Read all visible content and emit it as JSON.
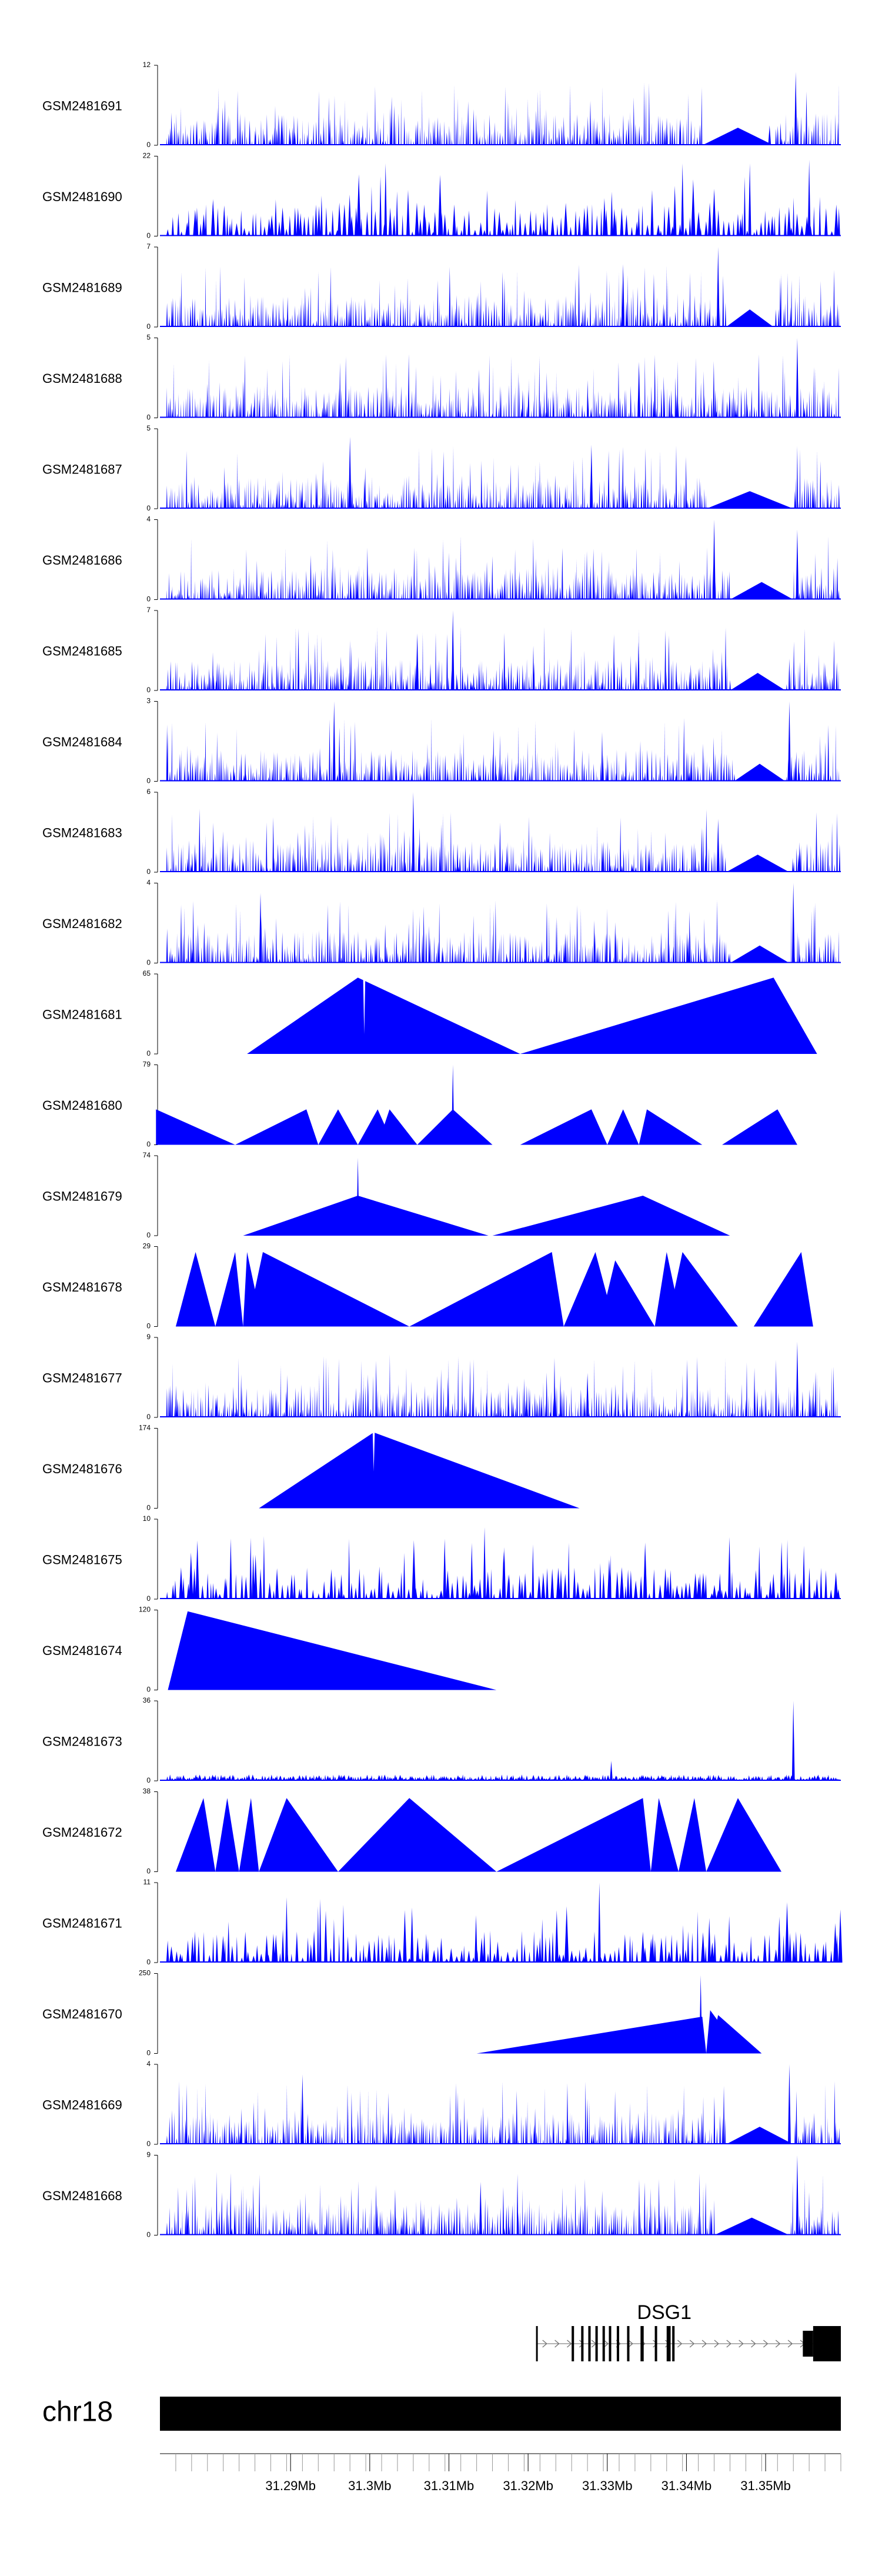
{
  "chart_data": {
    "type": "area",
    "chromosome": "chr18",
    "x_range_mb": [
      31.2735,
      31.3595
    ],
    "x_ticks": [
      31.29,
      31.3,
      31.31,
      31.32,
      31.33,
      31.34,
      31.35
    ],
    "x_tick_labels": [
      "31.29Mb",
      "31.3Mb",
      "31.31Mb",
      "31.32Mb",
      "31.33Mb",
      "31.34Mb",
      "31.35Mb"
    ],
    "colors": {
      "signal": "#0000ff",
      "axis": "#000000",
      "ideogram": "#000000",
      "gene": "#000000"
    },
    "tracks": [
      {
        "name": "GSM2481691",
        "ymax": 12,
        "pattern": "dense",
        "seed": 11,
        "spikes": [
          {
            "x": 31.3538,
            "y": 11
          },
          {
            "x": 31.3505,
            "y": 3
          },
          {
            "x": 31.2889,
            "y": 4.5
          }
        ],
        "gaps": [
          [
            31.342,
            31.351
          ]
        ]
      },
      {
        "name": "GSM2481690",
        "ymax": 22,
        "pattern": "sparse",
        "seed": 12,
        "spikes": [
          {
            "x": 31.3555,
            "y": 21
          },
          {
            "x": 31.302,
            "y": 20
          },
          {
            "x": 31.3395,
            "y": 20
          },
          {
            "x": 31.348,
            "y": 20
          }
        ],
        "gaps": []
      },
      {
        "name": "GSM2481689",
        "ymax": 7,
        "pattern": "dense",
        "seed": 13,
        "spikes": [
          {
            "x": 31.344,
            "y": 7
          },
          {
            "x": 31.332,
            "y": 5.5
          }
        ],
        "gaps": [
          [
            31.345,
            31.351
          ]
        ]
      },
      {
        "name": "GSM2481688",
        "ymax": 5,
        "pattern": "dense",
        "seed": 14,
        "spikes": [
          {
            "x": 31.354,
            "y": 5
          },
          {
            "x": 31.334,
            "y": 3.5
          }
        ],
        "gaps": []
      },
      {
        "name": "GSM2481687",
        "ymax": 5,
        "pattern": "dense",
        "seed": 15,
        "spikes": [
          {
            "x": 31.2975,
            "y": 4.5
          },
          {
            "x": 31.328,
            "y": 4
          }
        ],
        "gaps": [
          [
            31.3425,
            31.3535
          ]
        ]
      },
      {
        "name": "GSM2481686",
        "ymax": 4,
        "pattern": "dense",
        "seed": 16,
        "spikes": [
          {
            "x": 31.3435,
            "y": 4
          },
          {
            "x": 31.354,
            "y": 3.5
          }
        ],
        "gaps": [
          [
            31.3455,
            31.3535
          ]
        ]
      },
      {
        "name": "GSM2481685",
        "ymax": 7,
        "pattern": "dense",
        "seed": 17,
        "spikes": [
          {
            "x": 31.3105,
            "y": 7
          },
          {
            "x": 31.306,
            "y": 5
          }
        ],
        "gaps": [
          [
            31.3455,
            31.3525
          ]
        ]
      },
      {
        "name": "GSM2481684",
        "ymax": 3,
        "pattern": "dense",
        "seed": 18,
        "spikes": [
          {
            "x": 31.2955,
            "y": 3
          },
          {
            "x": 31.353,
            "y": 3
          }
        ],
        "gaps": [
          [
            31.346,
            31.3525
          ]
        ]
      },
      {
        "name": "GSM2481683",
        "ymax": 6,
        "pattern": "dense",
        "seed": 19,
        "spikes": [
          {
            "x": 31.3055,
            "y": 6
          },
          {
            "x": 31.344,
            "y": 4
          }
        ],
        "gaps": [
          [
            31.345,
            31.353
          ]
        ]
      },
      {
        "name": "GSM2481682",
        "ymax": 4,
        "pattern": "dense",
        "seed": 20,
        "spikes": [
          {
            "x": 31.3535,
            "y": 4
          },
          {
            "x": 31.2862,
            "y": 3.5
          }
        ],
        "gaps": [
          [
            31.3455,
            31.353
          ]
        ]
      },
      {
        "name": "GSM2481681",
        "ymax": 65,
        "pattern": "triangles",
        "seed": 21,
        "triangles": [
          [
            31.2845,
            31.319,
            31.2985,
            62
          ],
          [
            31.319,
            31.3565,
            31.351,
            62
          ]
        ],
        "notches": [
          {
            "x": 31.2993,
            "y": 16
          }
        ],
        "spikes": [],
        "gaps": []
      },
      {
        "name": "GSM2481680",
        "ymax": 79,
        "pattern": "triangles",
        "seed": 22,
        "triangles": [
          [
            31.273,
            31.283,
            31.273,
            35
          ],
          [
            31.283,
            31.2935,
            31.292,
            35
          ],
          [
            31.2935,
            31.2985,
            31.296,
            35
          ],
          [
            31.2985,
            31.303,
            31.301,
            35
          ],
          [
            31.301,
            31.306,
            31.3025,
            35
          ],
          [
            31.306,
            31.3155,
            31.3105,
            35
          ],
          [
            31.319,
            31.33,
            31.328,
            35
          ],
          [
            31.33,
            31.334,
            31.332,
            35
          ],
          [
            31.334,
            31.342,
            31.335,
            35
          ],
          [
            31.3445,
            31.354,
            31.3515,
            35
          ]
        ],
        "notches": [],
        "spikes": [
          {
            "x": 31.3105,
            "y": 79
          }
        ],
        "gaps": []
      },
      {
        "name": "GSM2481679",
        "ymax": 74,
        "pattern": "triangles",
        "seed": 23,
        "triangles": [
          [
            31.284,
            31.315,
            31.2985,
            37
          ],
          [
            31.3155,
            31.3455,
            31.3345,
            37
          ]
        ],
        "notches": [
          {
            "x": 31.2985,
            "y": 8
          }
        ],
        "spikes": [
          {
            "x": 31.2985,
            "y": 72
          }
        ],
        "gaps": []
      },
      {
        "name": "GSM2481678",
        "ymax": 29,
        "pattern": "triangles",
        "seed": 24,
        "triangles": [
          [
            31.2755,
            31.2805,
            31.278,
            27
          ],
          [
            31.2805,
            31.284,
            31.283,
            27
          ],
          [
            31.284,
            31.2865,
            31.2845,
            27
          ],
          [
            31.2845,
            31.305,
            31.2865,
            27
          ],
          [
            31.305,
            31.3245,
            31.323,
            27
          ],
          [
            31.3245,
            31.331,
            31.3285,
            27
          ],
          [
            31.329,
            31.336,
            31.331,
            24
          ],
          [
            31.336,
            31.3395,
            31.3375,
            27
          ],
          [
            31.3375,
            31.3465,
            31.3395,
            27
          ],
          [
            31.3485,
            31.356,
            31.3545,
            27
          ]
        ],
        "notches": [],
        "spikes": [],
        "gaps": []
      },
      {
        "name": "GSM2481677",
        "ymax": 9,
        "pattern": "dense",
        "seed": 25,
        "spikes": [
          {
            "x": 31.354,
            "y": 8.5
          },
          {
            "x": 31.3275,
            "y": 5
          }
        ],
        "gaps": []
      },
      {
        "name": "GSM2481676",
        "ymax": 174,
        "pattern": "triangles",
        "seed": 26,
        "triangles": [
          [
            31.286,
            31.3265,
            31.3005,
            165
          ]
        ],
        "notches": [
          {
            "x": 31.3005,
            "y": 80
          }
        ],
        "spikes": [],
        "gaps": []
      },
      {
        "name": "GSM2481675",
        "ymax": 10,
        "pattern": "sparse",
        "seed": 27,
        "spikes": [
          {
            "x": 31.3145,
            "y": 9
          },
          {
            "x": 31.317,
            "y": 6.5
          }
        ],
        "gaps": []
      },
      {
        "name": "GSM2481674",
        "ymax": 120,
        "pattern": "triangles",
        "seed": 28,
        "triangles": [
          [
            31.2745,
            31.316,
            31.277,
            118
          ]
        ],
        "notches": [],
        "spikes": [],
        "gaps": []
      },
      {
        "name": "GSM2481673",
        "ymax": 36,
        "pattern": "low",
        "seed": 29,
        "spikes": [
          {
            "x": 31.3535,
            "y": 36
          },
          {
            "x": 31.3305,
            "y": 9
          }
        ],
        "gaps": []
      },
      {
        "name": "GSM2481672",
        "ymax": 38,
        "pattern": "triangles",
        "seed": 30,
        "triangles": [
          [
            31.2755,
            31.2805,
            31.279,
            35
          ],
          [
            31.2805,
            31.2835,
            31.282,
            35
          ],
          [
            31.2835,
            31.286,
            31.285,
            35
          ],
          [
            31.286,
            31.296,
            31.2895,
            35
          ],
          [
            31.296,
            31.316,
            31.305,
            35
          ],
          [
            31.316,
            31.3355,
            31.3345,
            35
          ],
          [
            31.3355,
            31.339,
            31.3365,
            35
          ],
          [
            31.339,
            31.3425,
            31.341,
            35
          ],
          [
            31.3425,
            31.352,
            31.3465,
            35
          ]
        ],
        "notches": [],
        "spikes": [],
        "gaps": []
      },
      {
        "name": "GSM2481671",
        "ymax": 11,
        "pattern": "sparse",
        "seed": 31,
        "spikes": [
          {
            "x": 31.329,
            "y": 11
          },
          {
            "x": 31.2895,
            "y": 9
          }
        ],
        "gaps": []
      },
      {
        "name": "GSM2481670",
        "ymax": 250,
        "pattern": "triangles",
        "seed": 32,
        "triangles": [
          [
            31.3135,
            31.3425,
            31.342,
            115
          ],
          [
            31.3425,
            31.347,
            31.343,
            135
          ],
          [
            31.343,
            31.3495,
            31.344,
            120
          ]
        ],
        "notches": [],
        "spikes": [
          {
            "x": 31.3418,
            "y": 245
          }
        ],
        "gaps": []
      },
      {
        "name": "GSM2481669",
        "ymax": 4,
        "pattern": "dense",
        "seed": 33,
        "spikes": [
          {
            "x": 31.353,
            "y": 4
          },
          {
            "x": 31.2915,
            "y": 3.5
          }
        ],
        "gaps": [
          [
            31.345,
            31.3535
          ]
        ]
      },
      {
        "name": "GSM2481668",
        "ymax": 9,
        "pattern": "dense",
        "seed": 34,
        "spikes": [
          {
            "x": 31.354,
            "y": 9
          },
          {
            "x": 31.314,
            "y": 6
          }
        ],
        "gaps": [
          [
            31.3435,
            31.353
          ]
        ]
      }
    ],
    "gene": {
      "name": "DSG1",
      "strand": "+",
      "start_mb": 31.321,
      "end_mb": 31.3595,
      "exons_mb": [
        [
          31.321,
          31.3212
        ],
        [
          31.3255,
          31.3258
        ],
        [
          31.3267,
          31.327
        ],
        [
          31.3276,
          31.3279
        ],
        [
          31.3285,
          31.3288
        ],
        [
          31.3294,
          31.3297
        ],
        [
          31.3302,
          31.3305
        ],
        [
          31.3312,
          31.3315
        ],
        [
          31.3325,
          31.3328
        ],
        [
          31.3342,
          31.3346
        ],
        [
          31.336,
          31.3363
        ],
        [
          31.3375,
          31.338
        ],
        [
          31.3382,
          31.3385
        ],
        [
          31.356,
          31.3595
        ]
      ],
      "utr_mb": [
        [
          31.3547,
          31.356
        ]
      ]
    }
  }
}
